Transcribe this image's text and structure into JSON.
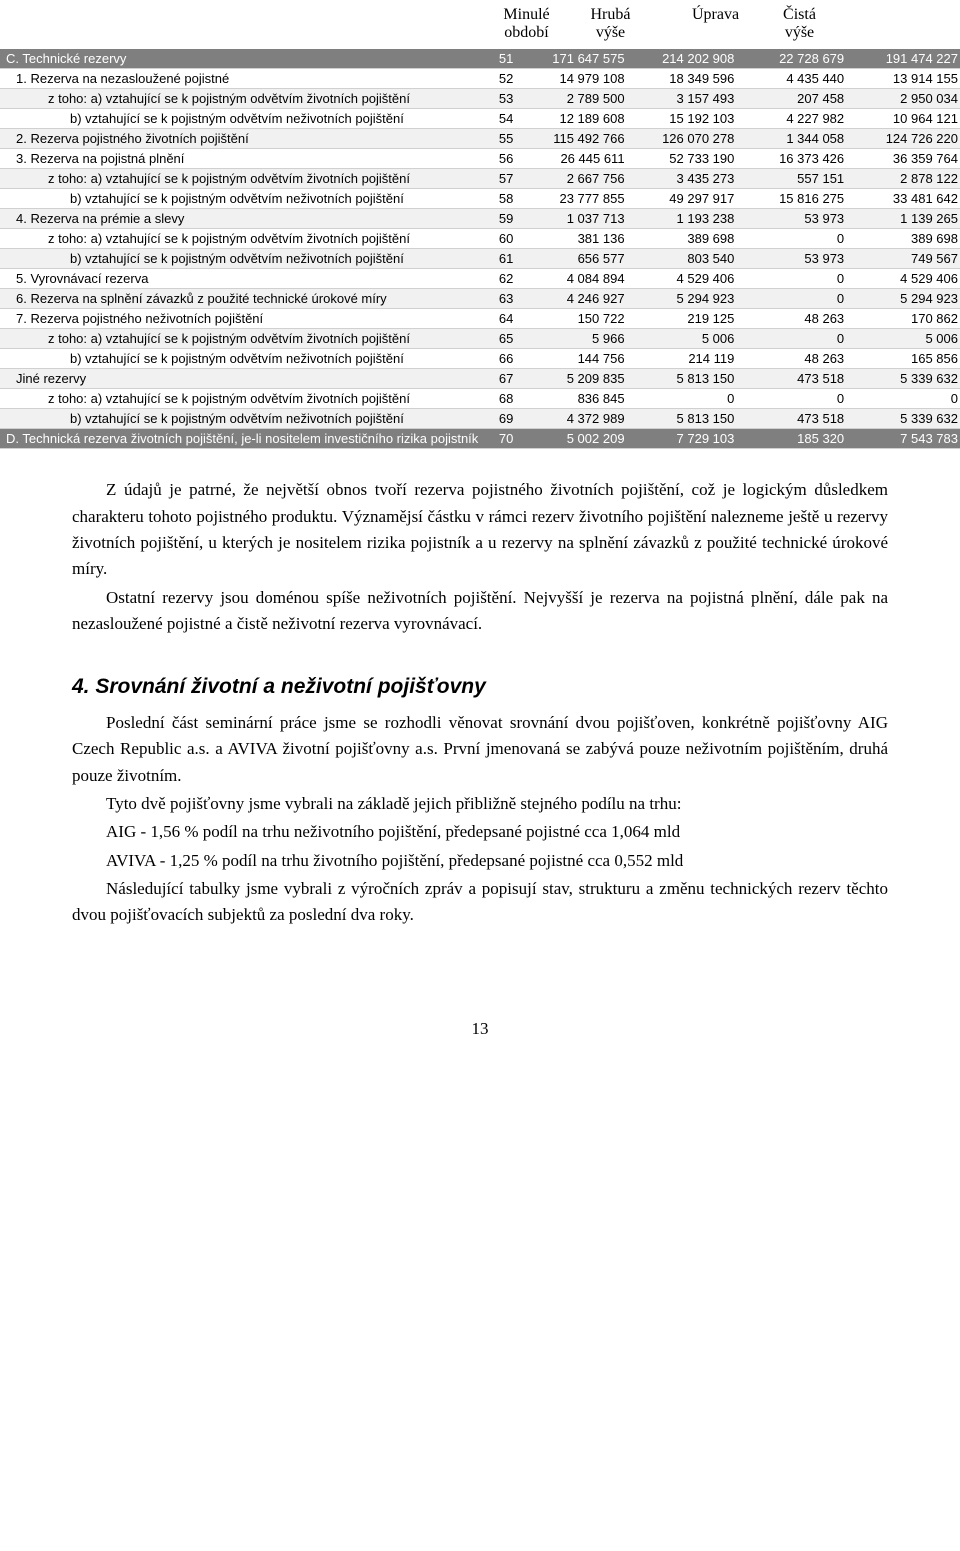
{
  "headers": {
    "c1a": "Minulé",
    "c1b": "období",
    "c2a": "Hrubá",
    "c2b": "výše",
    "c3": "Úprava",
    "c4a": "Čistá",
    "c4b": "výše"
  },
  "table": {
    "rows": [
      {
        "cls": "section",
        "indent": 0,
        "label": "C. Technické rezervy",
        "code": "51",
        "v1": "171 647 575",
        "v2": "214 202 908",
        "v3": "22 728 679",
        "v4": "191 474 227"
      },
      {
        "cls": "plain",
        "indent": 1,
        "label": "1. Rezerva na nezasloužené pojistné",
        "code": "52",
        "v1": "14 979 108",
        "v2": "18 349 596",
        "v3": "4 435 440",
        "v4": "13 914 155"
      },
      {
        "cls": "alt",
        "indent": 2,
        "label": "z toho: a) vztahující se k pojistným odvětvím životních pojištění",
        "code": "53",
        "v1": "2 789 500",
        "v2": "3 157 493",
        "v3": "207 458",
        "v4": "2 950 034"
      },
      {
        "cls": "plain",
        "indent": 3,
        "label": "b) vztahující se k pojistným odvětvím neživotních pojištění",
        "code": "54",
        "v1": "12 189 608",
        "v2": "15 192 103",
        "v3": "4 227 982",
        "v4": "10 964 121"
      },
      {
        "cls": "alt",
        "indent": 1,
        "label": "2. Rezerva pojistného životních pojištění",
        "code": "55",
        "v1": "115 492 766",
        "v2": "126 070 278",
        "v3": "1 344 058",
        "v4": "124 726 220"
      },
      {
        "cls": "plain",
        "indent": 1,
        "label": "3. Rezerva na pojistná plnění",
        "code": "56",
        "v1": "26 445 611",
        "v2": "52 733 190",
        "v3": "16 373 426",
        "v4": "36 359 764"
      },
      {
        "cls": "alt",
        "indent": 2,
        "label": "z toho: a) vztahující se k pojistným odvětvím životních pojištění",
        "code": "57",
        "v1": "2 667 756",
        "v2": "3 435 273",
        "v3": "557 151",
        "v4": "2 878 122"
      },
      {
        "cls": "plain",
        "indent": 3,
        "label": "b) vztahující se k pojistným odvětvím neživotních pojištění",
        "code": "58",
        "v1": "23 777 855",
        "v2": "49 297 917",
        "v3": "15 816 275",
        "v4": "33 481 642"
      },
      {
        "cls": "alt",
        "indent": 1,
        "label": "4. Rezerva na prémie a slevy",
        "code": "59",
        "v1": "1 037 713",
        "v2": "1 193 238",
        "v3": "53 973",
        "v4": "1 139 265"
      },
      {
        "cls": "plain",
        "indent": 2,
        "label": "z toho: a) vztahující se k pojistným odvětvím životních pojištění",
        "code": "60",
        "v1": "381 136",
        "v2": "389 698",
        "v3": "0",
        "v4": "389 698"
      },
      {
        "cls": "alt",
        "indent": 3,
        "label": "b) vztahující se k pojistným odvětvím neživotních pojištění",
        "code": "61",
        "v1": "656 577",
        "v2": "803 540",
        "v3": "53 973",
        "v4": "749 567"
      },
      {
        "cls": "plain",
        "indent": 1,
        "label": "5. Vyrovnávací rezerva",
        "code": "62",
        "v1": "4 084 894",
        "v2": "4 529 406",
        "v3": "0",
        "v4": "4 529 406"
      },
      {
        "cls": "alt",
        "indent": 1,
        "label": "6. Rezerva na splnění závazků z použité technické úrokové míry",
        "code": "63",
        "v1": "4 246 927",
        "v2": "5 294 923",
        "v3": "0",
        "v4": "5 294 923"
      },
      {
        "cls": "plain",
        "indent": 1,
        "label": "7. Rezerva pojistného neživotních pojištění",
        "code": "64",
        "v1": "150 722",
        "v2": "219 125",
        "v3": "48 263",
        "v4": "170 862"
      },
      {
        "cls": "alt",
        "indent": 2,
        "label": "z toho: a) vztahující se k pojistným odvětvím životních pojištění",
        "code": "65",
        "v1": "5 966",
        "v2": "5 006",
        "v3": "0",
        "v4": "5 006"
      },
      {
        "cls": "plain",
        "indent": 3,
        "label": "b) vztahující se k pojistným odvětvím neživotních pojištění",
        "code": "66",
        "v1": "144 756",
        "v2": "214 119",
        "v3": "48 263",
        "v4": "165 856"
      },
      {
        "cls": "alt",
        "indent": 1,
        "label": "Jiné rezervy",
        "code": "67",
        "v1": "5 209 835",
        "v2": "5 813 150",
        "v3": "473 518",
        "v4": "5 339 632"
      },
      {
        "cls": "plain",
        "indent": 2,
        "label": "z toho: a) vztahující se k pojistným odvětvím životních pojištění",
        "code": "68",
        "v1": "836 845",
        "v2": "0",
        "v3": "0",
        "v4": "0"
      },
      {
        "cls": "alt",
        "indent": 3,
        "label": "b) vztahující se k pojistným odvětvím neživotních pojištění",
        "code": "69",
        "v1": "4 372 989",
        "v2": "5 813 150",
        "v3": "473 518",
        "v4": "5 339 632"
      },
      {
        "cls": "section",
        "indent": 0,
        "label": "D. Technická rezerva životních pojištění, je-li nositelem investičního rizika pojistník",
        "code": "70",
        "v1": "5 002 209",
        "v2": "7 729 103",
        "v3": "185 320",
        "v4": "7 543 783"
      }
    ]
  },
  "para1": "Z údajů je patrné, že největší obnos tvoří rezerva pojistného životních pojištění, což je logickým důsledkem charakteru tohoto pojistného produktu. Významějsí částku v rámci rezerv životního pojištění nalezneme ještě u rezervy životních pojištění, u kterých je nositelem rizika pojistník a u rezervy na splnění závazků z použité technické úrokové míry.",
  "para2": "Ostatní rezervy jsou doménou spíše neživotních pojištění. Nejvyšší je rezerva na pojistná plnění, dále pak na nezasloužené pojistné a čistě neživotní rezerva vyrovnávací.",
  "h2": "4. Srovnání životní a neživotní pojišťovny",
  "para3": "Poslední část seminární práce jsme se rozhodli věnovat srovnání dvou pojišťoven, konkrétně pojišťovny AIG Czech Republic a.s. a AVIVA životní pojišťovny a.s. První jmenovaná se zabývá pouze neživotním pojištěním, druhá pouze životním.",
  "para4": "Tyto dvě pojišťovny jsme vybrali na základě jejich přibližně stejného podílu na trhu:",
  "para5": "AIG - 1,56 % podíl na trhu neživotního pojištění, předepsané pojistné cca 1,064 mld",
  "para6": "AVIVA - 1,25 % podíl na trhu životního pojištění, předepsané pojistné cca 0,552 mld",
  "para7": "Následující tabulky jsme vybrali z výročních zpráv a popisují stav, strukturu a změnu technických rezerv těchto dvou pojišťovacích subjektů za poslední dva roky.",
  "pagenum": "13"
}
